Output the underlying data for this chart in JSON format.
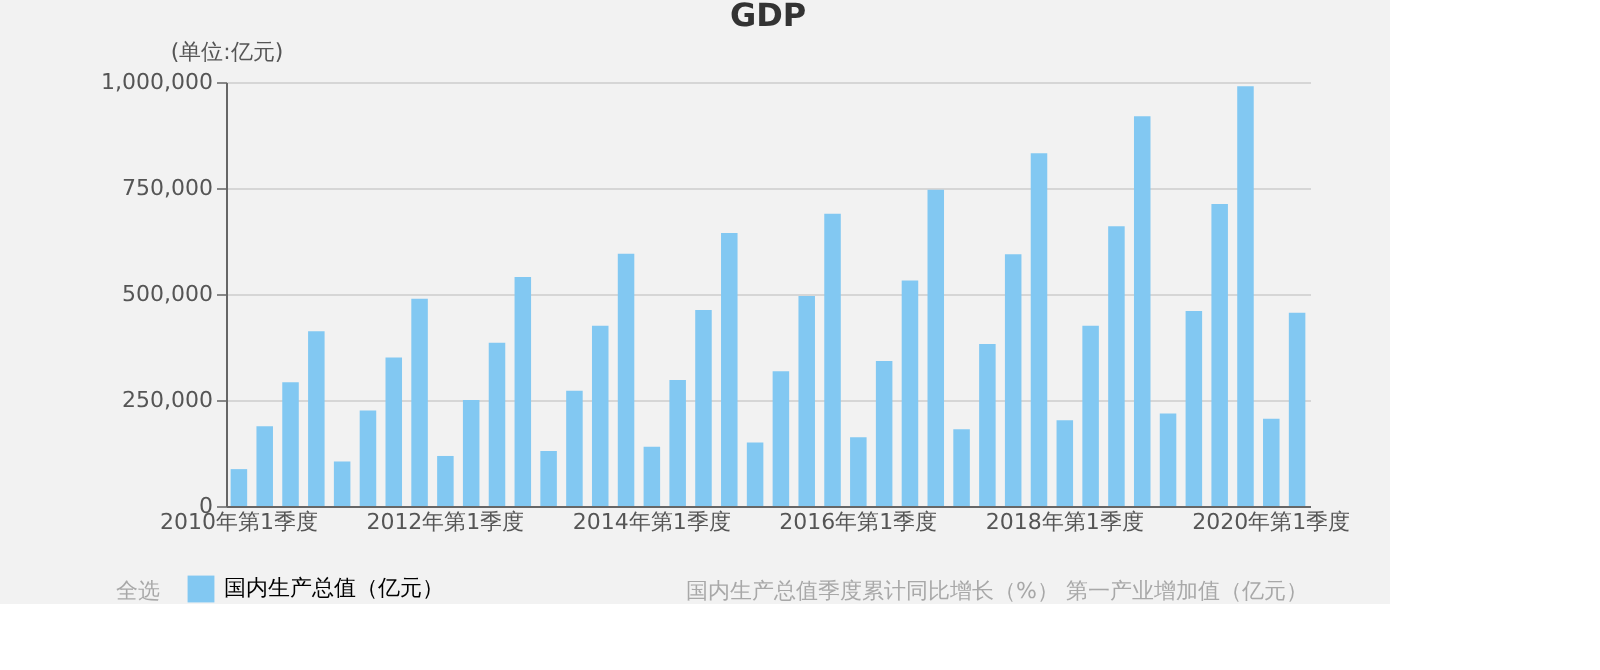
{
  "chart_data": {
    "type": "bar",
    "title": "GDP",
    "ylabel": "(单位:亿元)",
    "categories": [
      "2010年第1季度",
      null,
      null,
      null,
      null,
      null,
      null,
      null,
      "2012年第1季度",
      null,
      null,
      null,
      null,
      null,
      null,
      null,
      "2014年第1季度",
      null,
      null,
      null,
      null,
      null,
      null,
      null,
      "2016年第1季度",
      null,
      null,
      null,
      null,
      null,
      null,
      null,
      "2018年第1季度",
      null,
      null,
      null,
      null,
      null,
      null,
      null,
      "2020年第1季度",
      null
    ],
    "series": [
      {
        "name": "国内生产总值（亿元）",
        "color": "#82c8f2",
        "values": [
          87000,
          188000,
          292000,
          412000,
          105000,
          225000,
          350000,
          489000,
          118000,
          250000,
          385000,
          540000,
          130000,
          272000,
          425000,
          595000,
          140000,
          297000,
          462000,
          644000,
          150000,
          318000,
          495000,
          689000,
          162000,
          342000,
          532000,
          746000,
          181000,
          382000,
          594000,
          832000,
          202000,
          425000,
          660000,
          919000,
          218000,
          460000,
          712000,
          990000,
          206000,
          456000
        ]
      }
    ],
    "ylim": [
      0,
      1000000
    ],
    "yticks": [
      0,
      {
        "value": 250000,
        "label": "250,000"
      },
      {
        "value": 500000,
        "label": "500,000"
      },
      {
        "value": 750000,
        "label": "750,000"
      },
      {
        "value": 1000000,
        "label": "1,000,000"
      }
    ],
    "grid": "y",
    "legend": "bottom",
    "annotations": [
      "全选",
      "国内生产总值季度累计同比增长（%）",
      "第一产业增加值（亿元）"
    ]
  }
}
